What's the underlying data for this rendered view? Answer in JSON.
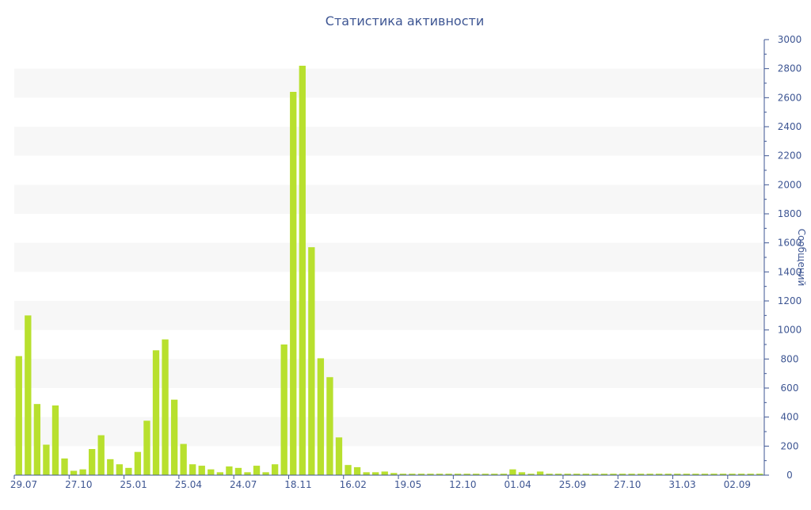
{
  "chart_data": {
    "type": "bar",
    "title": "Статистика активности",
    "ylabel": "Сообщений",
    "xlabel": "",
    "ylim": [
      0,
      3000
    ],
    "y_ticks": [
      0,
      200,
      400,
      600,
      800,
      1000,
      1200,
      1400,
      1600,
      1800,
      2000,
      2200,
      2400,
      2600,
      2800,
      3000
    ],
    "y_axis_side": "right",
    "grid": "alternating horizontal bands",
    "legend": "none",
    "colors": {
      "bar": "#b8e02e",
      "text": "#3e5693",
      "axis": "#3e5693",
      "band": "#f7f7f7"
    },
    "x_tick_labels": [
      {
        "index": 0,
        "label": "29.07"
      },
      {
        "index": 6,
        "label": "27.10"
      },
      {
        "index": 12,
        "label": "25.01"
      },
      {
        "index": 18,
        "label": "25.04"
      },
      {
        "index": 24,
        "label": "24.07"
      },
      {
        "index": 30,
        "label": "18.11"
      },
      {
        "index": 36,
        "label": "16.02"
      },
      {
        "index": 42,
        "label": "19.05"
      },
      {
        "index": 48,
        "label": "12.10"
      },
      {
        "index": 54,
        "label": "01.04"
      },
      {
        "index": 60,
        "label": "25.09"
      },
      {
        "index": 66,
        "label": "27.10"
      },
      {
        "index": 72,
        "label": "31.03"
      },
      {
        "index": 78,
        "label": "02.09"
      }
    ],
    "values": [
      820,
      1100,
      490,
      210,
      480,
      115,
      30,
      40,
      180,
      275,
      110,
      75,
      50,
      160,
      375,
      860,
      935,
      520,
      215,
      75,
      65,
      40,
      20,
      60,
      50,
      20,
      65,
      20,
      75,
      900,
      2640,
      2820,
      1570,
      805,
      675,
      260,
      70,
      55,
      20,
      20,
      25,
      15,
      10,
      10,
      10,
      10,
      10,
      10,
      10,
      10,
      10,
      10,
      10,
      10,
      40,
      20,
      10,
      25,
      10,
      10,
      10,
      10,
      10,
      10,
      10,
      10,
      10,
      10,
      10,
      10,
      10,
      10,
      10,
      10,
      10,
      10,
      10,
      10,
      10,
      10,
      10,
      10
    ]
  }
}
